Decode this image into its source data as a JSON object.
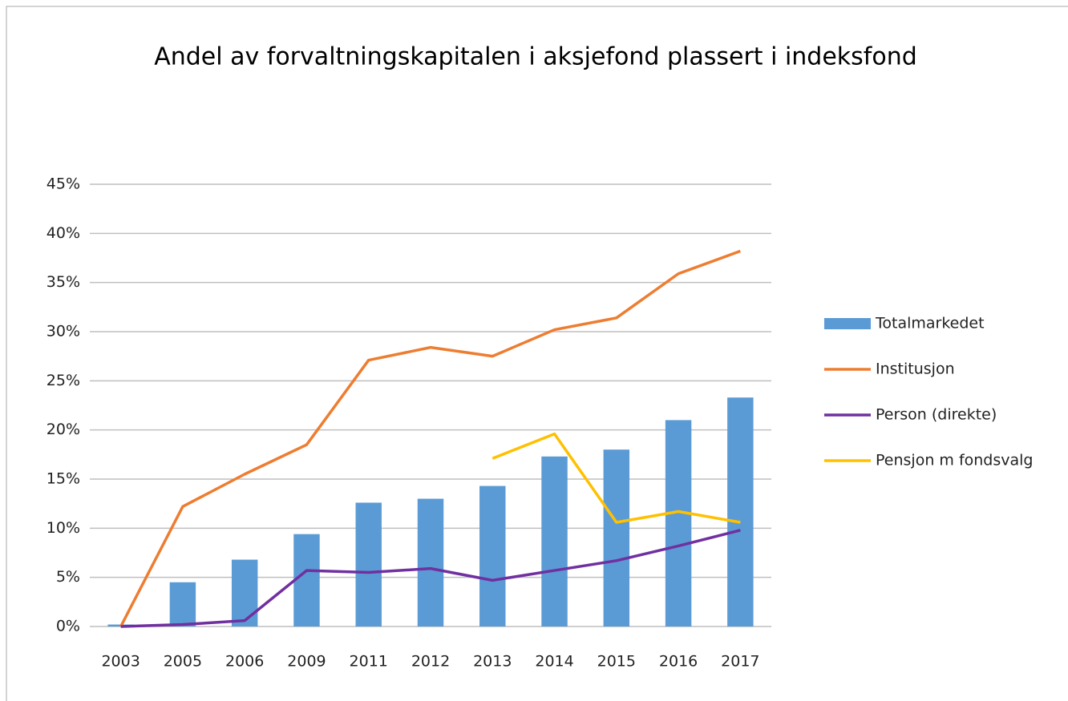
{
  "chart_data": {
    "type": "bar",
    "title": "Andel av forvaltningskapitalen i aksjefond plassert i indeksfond",
    "categories": [
      "2003",
      "2005",
      "2006",
      "2009",
      "2011",
      "2012",
      "2013",
      "2014",
      "2015",
      "2016",
      "2017"
    ],
    "series": [
      {
        "name": "Totalmarkedet",
        "type": "bar",
        "color": "#5b9bd5",
        "values": [
          0.2,
          4.5,
          6.8,
          9.4,
          12.6,
          13.0,
          14.3,
          17.3,
          18.0,
          21.0,
          23.3
        ]
      },
      {
        "name": "Institusjon",
        "type": "line",
        "color": "#ed7d31",
        "values": [
          0,
          12.2,
          15.5,
          18.5,
          27.1,
          28.4,
          27.5,
          30.2,
          31.4,
          35.9,
          38.2
        ]
      },
      {
        "name": "Person (direkte)",
        "type": "line",
        "color": "#7030a0",
        "values": [
          0,
          0.2,
          0.6,
          5.7,
          5.5,
          5.9,
          4.7,
          5.7,
          6.7,
          8.2,
          9.8
        ]
      },
      {
        "name": "Pensjon m fondsvalg",
        "type": "line",
        "color": "#ffc000",
        "values": [
          null,
          null,
          null,
          null,
          null,
          null,
          17.1,
          19.6,
          10.6,
          11.7,
          10.6
        ]
      }
    ],
    "ylim": [
      0,
      45
    ],
    "yticks": [
      {
        "value": 0,
        "label": "0%"
      },
      {
        "value": 5,
        "label": "5%"
      },
      {
        "value": 10,
        "label": "10%"
      },
      {
        "value": 15,
        "label": "15%"
      },
      {
        "value": 20,
        "label": "20%"
      },
      {
        "value": 25,
        "label": "25%"
      },
      {
        "value": 30,
        "label": "30%"
      },
      {
        "value": 35,
        "label": "35%"
      },
      {
        "value": 40,
        "label": "40%"
      },
      {
        "value": 45,
        "label": "45%"
      }
    ],
    "grid": true,
    "legend": "right"
  }
}
